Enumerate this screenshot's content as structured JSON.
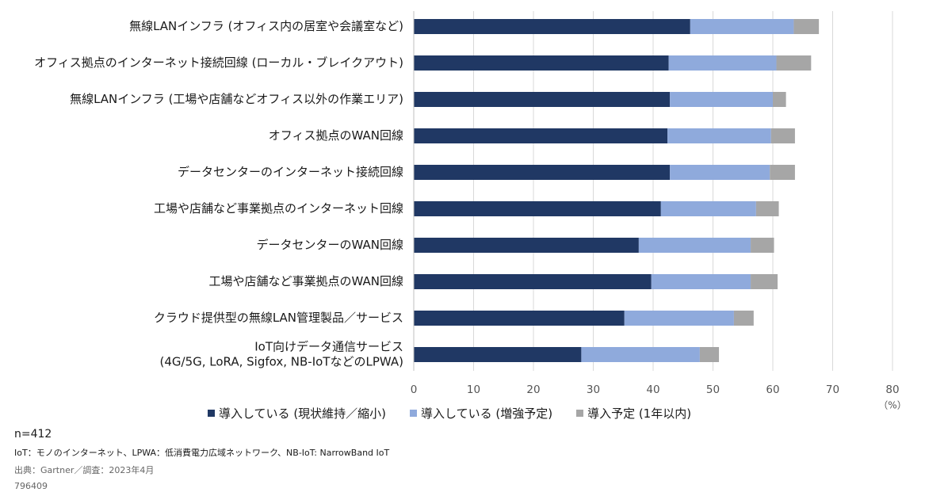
{
  "chart_data": {
    "type": "bar",
    "orientation": "horizontal",
    "stacked": true,
    "categories": [
      "無線LANインフラ (オフィス内の居室や会議室など)",
      "オフィス拠点のインターネット接続回線 (ローカル・ブレイクアウト)",
      "無線LANインフラ (工場や店舗などオフィス以外の作業エリア)",
      "オフィス拠点のWAN回線",
      "データセンターのインターネット接続回線",
      "工場や店舗など事業拠点のインターネット回線",
      "データセンターのWAN回線",
      "工場や店舗など事業拠点のWAN回線",
      "クラウド提供型の無線LAN管理製品／サービス",
      "IoT向けデータ通信サービス\n(4G/5G, LoRA, Sigfox, NB-IoTなどのLPWA)"
    ],
    "series": [
      {
        "name": "導入している (現状維持／縮小)",
        "color": "#203864",
        "values": [
          46.2,
          42.6,
          42.8,
          42.4,
          42.8,
          41.3,
          37.6,
          39.7,
          35.2,
          28.0
        ]
      },
      {
        "name": "導入している (増強予定)",
        "color": "#8faadc",
        "values": [
          17.3,
          18.0,
          17.2,
          17.3,
          16.7,
          15.9,
          18.7,
          16.6,
          18.3,
          19.8
        ]
      },
      {
        "name": "導入予定 (1年以内)",
        "color": "#a6a6a6",
        "values": [
          4.2,
          5.8,
          2.2,
          4.0,
          4.2,
          3.8,
          3.9,
          4.5,
          3.3,
          3.2
        ]
      }
    ],
    "xlim": [
      0,
      80
    ],
    "xticks": [
      0,
      10,
      20,
      30,
      40,
      50,
      60,
      70,
      80
    ],
    "unit": "（%）",
    "grid": "vertical",
    "legend_position": "bottom"
  },
  "footer": {
    "sample": "n=412",
    "note": "IoT：モノのインターネット、LPWA：低消費電力広域ネットワーク、NB-IoT: NarrowBand IoT",
    "source": "出典：Gartner／調査：2023年4月",
    "id": "796409"
  }
}
